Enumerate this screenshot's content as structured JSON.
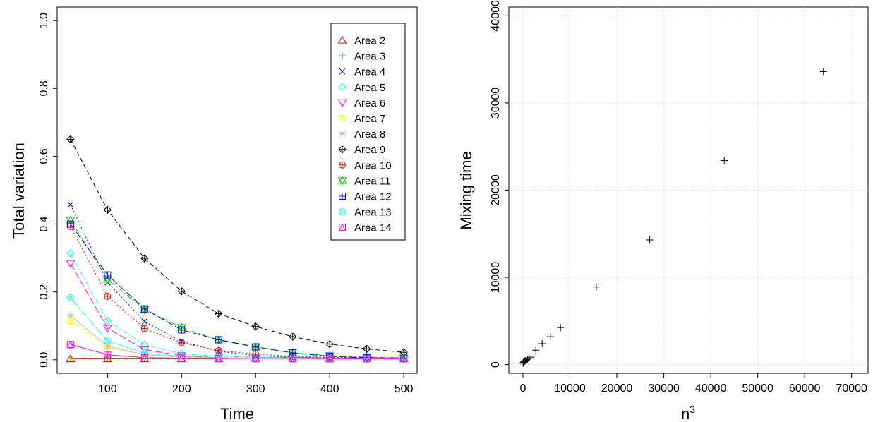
{
  "chart_data": [
    {
      "type": "line",
      "xlabel": "Time",
      "ylabel": "Total variation",
      "xlim": [
        50,
        500
      ],
      "ylim": [
        0,
        1.0
      ],
      "x_ticks": [
        100,
        200,
        300,
        400,
        500
      ],
      "x_tick_labels": [
        "100",
        "200",
        "300",
        "400",
        "500"
      ],
      "y_ticks": [
        0,
        0.2,
        0.4,
        0.6,
        0.8,
        1.0
      ],
      "y_tick_labels": [
        "0.0",
        "0.2",
        "0.4",
        "0.6",
        "0.8",
        "1.0"
      ],
      "grid": false,
      "legend_position": "top-right",
      "x": [
        50,
        100,
        150,
        200,
        250,
        300,
        350,
        400,
        450,
        500
      ],
      "series": [
        {
          "name": "Area 2",
          "color": "#ff0000",
          "marker": "triangle",
          "values": [
            0.003,
            0.003,
            0.003,
            0.003,
            0.003,
            0.005,
            0.006,
            0.004,
            0.005,
            0.004
          ]
        },
        {
          "name": "Area 3",
          "color": "#00cc00",
          "marker": "plus",
          "values": [
            0.004,
            0.004,
            0.003,
            0.004,
            0.004,
            0.006,
            0.008,
            0.005,
            0.006,
            0.006
          ]
        },
        {
          "name": "Area 4",
          "color": "#0000ff",
          "marker": "x",
          "values": [
            0.457,
            0.228,
            0.113,
            0.054,
            0.025,
            0.012,
            0.008,
            0.006,
            0.004,
            0.004
          ]
        },
        {
          "name": "Area 5",
          "color": "#00ffff",
          "marker": "diamond",
          "values": [
            0.314,
            0.115,
            0.045,
            0.018,
            0.01,
            0.008,
            0.006,
            0.005,
            0.004,
            0.004
          ]
        },
        {
          "name": "Area 6",
          "color": "#ff00ff",
          "marker": "triangle-down",
          "values": [
            0.284,
            0.093,
            0.03,
            0.012,
            0.006,
            0.005,
            0.004,
            0.004,
            0.003,
            0.003
          ]
        },
        {
          "name": "Area 7",
          "color": "#ffff00",
          "marker": "square-x",
          "values": [
            0.115,
            0.037,
            0.015,
            0.008,
            0.006,
            0.005,
            0.004,
            0.004,
            0.003,
            0.003
          ]
        },
        {
          "name": "Area 8",
          "color": "#bebebe",
          "marker": "asterisk",
          "values": [
            0.13,
            0.04,
            0.015,
            0.008,
            0.006,
            0.005,
            0.004,
            0.004,
            0.003,
            0.003
          ]
        },
        {
          "name": "Area 9",
          "color": "#000000",
          "marker": "diamond-plus",
          "values": [
            0.65,
            0.442,
            0.299,
            0.202,
            0.136,
            0.098,
            0.068,
            0.046,
            0.032,
            0.022
          ]
        },
        {
          "name": "Area 10",
          "color": "#ff0000",
          "marker": "circle-plus",
          "values": [
            0.393,
            0.187,
            0.092,
            0.05,
            0.027,
            0.017,
            0.01,
            0.007,
            0.005,
            0.004
          ]
        },
        {
          "name": "Area 11",
          "color": "#00cc00",
          "marker": "star-of-david",
          "values": [
            0.412,
            0.237,
            0.148,
            0.095,
            0.058,
            0.037,
            0.021,
            0.012,
            0.008,
            0.006
          ]
        },
        {
          "name": "Area 12",
          "color": "#0000ff",
          "marker": "square-plus",
          "values": [
            0.4,
            0.25,
            0.15,
            0.088,
            0.059,
            0.038,
            0.02,
            0.01,
            0.006,
            0.004
          ]
        },
        {
          "name": "Area 13",
          "color": "#00ffff",
          "marker": "circle-x",
          "values": [
            0.183,
            0.055,
            0.02,
            0.01,
            0.006,
            0.005,
            0.004,
            0.004,
            0.003,
            0.003
          ]
        },
        {
          "name": "Area 14",
          "color": "#ff00ff",
          "marker": "square-triangle",
          "values": [
            0.045,
            0.015,
            0.006,
            0.005,
            0.004,
            0.004,
            0.004,
            0.003,
            0.003,
            0.003
          ]
        }
      ]
    },
    {
      "type": "scatter",
      "xlabel": "n",
      "xlabel_superscript": "3",
      "ylabel": "Mixing time",
      "xlim": [
        -3000,
        73500
      ],
      "ylim": [
        -1000,
        41000
      ],
      "x_ticks": [
        0,
        10000,
        20000,
        30000,
        40000,
        50000,
        60000,
        70000
      ],
      "x_tick_labels": [
        "0",
        "10000",
        "20000",
        "30000",
        "40000",
        "50000",
        "60000",
        "70000"
      ],
      "y_ticks": [
        0,
        10000,
        20000,
        30000,
        40000
      ],
      "y_tick_labels": [
        "0",
        "10000",
        "20000",
        "30000",
        "40000"
      ],
      "grid": true,
      "marker": "plus",
      "points": [
        {
          "x": 27,
          "y": 150
        },
        {
          "x": 64,
          "y": 200
        },
        {
          "x": 125,
          "y": 260
        },
        {
          "x": 216,
          "y": 310
        },
        {
          "x": 343,
          "y": 380
        },
        {
          "x": 512,
          "y": 450
        },
        {
          "x": 729,
          "y": 530
        },
        {
          "x": 1000,
          "y": 620
        },
        {
          "x": 1331,
          "y": 720
        },
        {
          "x": 1728,
          "y": 850
        },
        {
          "x": 2744,
          "y": 1650
        },
        {
          "x": 4096,
          "y": 2400
        },
        {
          "x": 5832,
          "y": 3200
        },
        {
          "x": 8000,
          "y": 4250
        },
        {
          "x": 15625,
          "y": 8900
        },
        {
          "x": 27000,
          "y": 14300
        },
        {
          "x": 42875,
          "y": 23400
        },
        {
          "x": 64000,
          "y": 33600
        }
      ]
    }
  ]
}
